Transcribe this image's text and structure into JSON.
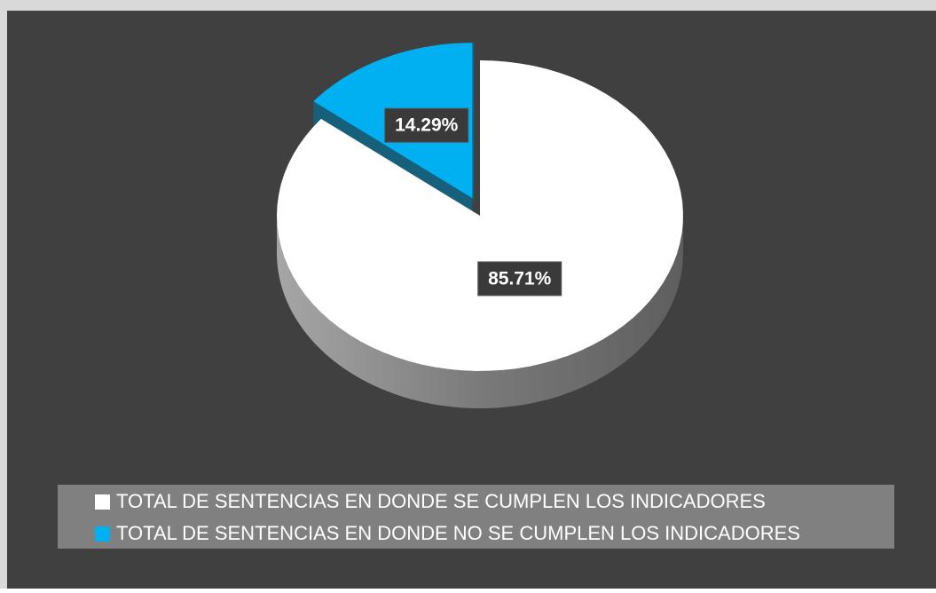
{
  "chart_data": {
    "type": "pie",
    "categories": [
      "TOTAL DE SENTENCIAS EN DONDE SE CUMPLEN LOS INDICADORES",
      "TOTAL DE SENTENCIAS EN DONDE NO SE CUMPLEN LOS INDICADORES"
    ],
    "values": [
      85.71,
      14.29
    ],
    "value_labels": [
      "85.71%",
      "14.29%"
    ],
    "colors": [
      "#ffffff",
      "#00b0f0"
    ],
    "legend": "bottom"
  }
}
